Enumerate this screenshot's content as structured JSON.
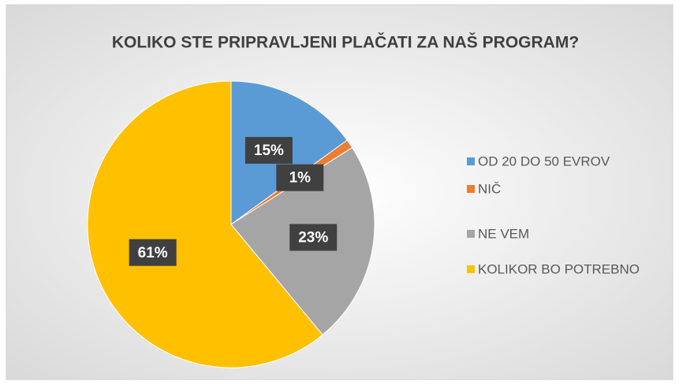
{
  "chart_data": {
    "type": "pie",
    "title": "KOLIKO STE PRIPRAVLJENI PLAČATI ZA NAŠ PROGRAM?",
    "categories": [
      "OD 20 DO 50 EVROV",
      "NIČ",
      "NE VEM",
      "KOLIKOR BO POTREBNO"
    ],
    "values": [
      15,
      1,
      23,
      61
    ],
    "value_labels": [
      "15%",
      "1%",
      "23%",
      "61%"
    ],
    "colors": [
      "#5b9bd5",
      "#ed7d31",
      "#a5a5a5",
      "#ffc000"
    ],
    "legend": "right"
  }
}
